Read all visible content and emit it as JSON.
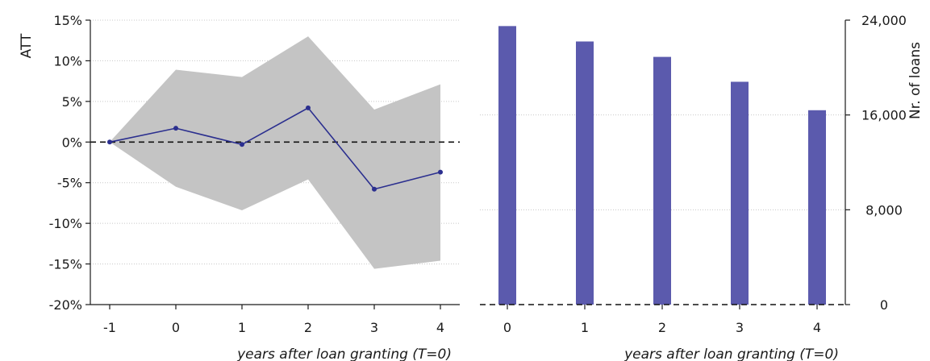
{
  "chart_data": [
    {
      "type": "line",
      "ylabel": "ATT",
      "xlabel": "years after loan granting (T=0)",
      "categories": [
        "-1",
        "0",
        "1",
        "2",
        "3",
        "4"
      ],
      "x": [
        -1,
        0,
        1,
        2,
        3,
        4
      ],
      "series": [
        {
          "values": [
            0.0,
            1.7,
            -0.3,
            4.2,
            -5.8,
            -3.7
          ],
          "ci_upper": [
            0.0,
            8.9,
            8.0,
            13.0,
            4.0,
            7.1
          ],
          "ci_lower": [
            0.0,
            -5.5,
            -8.4,
            -4.6,
            -15.6,
            -14.6
          ]
        }
      ],
      "ylim": [
        -20,
        15
      ],
      "yticks": [
        15,
        10,
        5,
        0,
        -5,
        -10,
        -15,
        -20
      ],
      "ytick_labels": [
        "15%",
        "10%",
        "5%",
        "0%",
        "-5%",
        "-10%",
        "-15%",
        "-20%"
      ],
      "reference_line": 0,
      "grid": true,
      "colors": {
        "line": "#2b2f8f",
        "band": "#c4c4c4"
      }
    },
    {
      "type": "bar",
      "ylabel": "Nr. of loans",
      "xlabel": "years after loan granting (T=0)",
      "categories": [
        "0",
        "1",
        "2",
        "3",
        "4"
      ],
      "values": [
        23500,
        22200,
        20900,
        18800,
        16400
      ],
      "ylim": [
        0,
        24000
      ],
      "yticks": [
        24000,
        16000,
        8000,
        0
      ],
      "ytick_labels": [
        "24,000",
        "16,000",
        "8,000",
        "0"
      ],
      "y_axis_side": "right",
      "reference_line": 0,
      "grid": true,
      "colors": {
        "bar": "#5b5aad"
      }
    }
  ]
}
